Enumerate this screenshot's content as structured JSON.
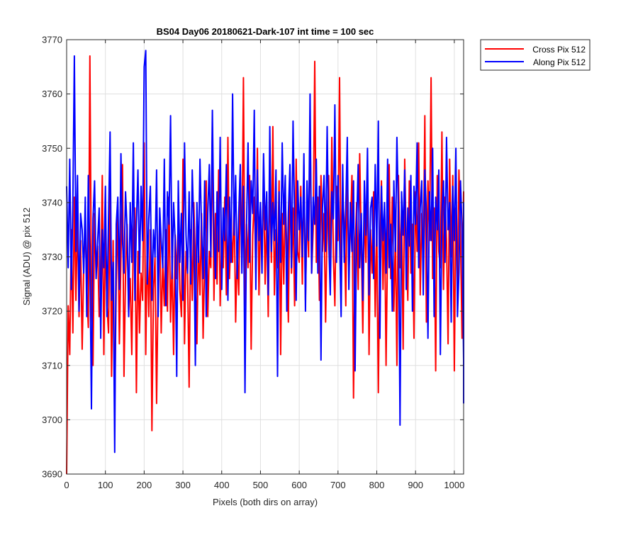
{
  "chart_data": {
    "type": "line",
    "title": "BS04 Day06 20180621-Dark-107 int time = 100 sec",
    "xlabel": "Pixels (both dirs on array)",
    "ylabel": "Signal (ADU) @ pix 512",
    "xlim": [
      0,
      1024
    ],
    "ylim": [
      3690,
      3770
    ],
    "xticks": [
      0,
      100,
      200,
      300,
      400,
      500,
      600,
      700,
      800,
      900,
      1000
    ],
    "yticks": [
      3690,
      3700,
      3710,
      3720,
      3730,
      3740,
      3750,
      3760,
      3770
    ],
    "grid": true,
    "legend_position": "outside top-right",
    "x_step": 4,
    "series": [
      {
        "name": "Cross Pix 512",
        "color": "#ff0000",
        "values": [
          3690,
          3721,
          3712,
          3735,
          3716,
          3741,
          3722,
          3738,
          3719,
          3733,
          3713,
          3728,
          3736,
          3724,
          3717,
          3767,
          3722,
          3710,
          3738,
          3727,
          3732,
          3719,
          3724,
          3745,
          3712,
          3735,
          3721,
          3716,
          3743,
          3708,
          3733,
          3702,
          3725,
          3738,
          3714,
          3730,
          3747,
          3708,
          3727,
          3736,
          3720,
          3726,
          3712,
          3734,
          3739,
          3705,
          3731,
          3716,
          3727,
          3722,
          3751,
          3712,
          3733,
          3719,
          3735,
          3698,
          3724,
          3730,
          3703,
          3725,
          3737,
          3716,
          3729,
          3721,
          3735,
          3720,
          3741,
          3718,
          3729,
          3712,
          3734,
          3726,
          3737,
          3724,
          3719,
          3748,
          3714,
          3731,
          3727,
          3706,
          3735,
          3722,
          3740,
          3729,
          3714,
          3733,
          3723,
          3738,
          3715,
          3729,
          3744,
          3719,
          3731,
          3728,
          3754,
          3722,
          3738,
          3725,
          3746,
          3721,
          3733,
          3728,
          3741,
          3723,
          3752,
          3726,
          3735,
          3729,
          3740,
          3718,
          3731,
          3723,
          3744,
          3729,
          3763,
          3721,
          3736,
          3728,
          3745,
          3713,
          3734,
          3741,
          3727,
          3750,
          3723,
          3737,
          3731,
          3744,
          3725,
          3738,
          3719,
          3746,
          3729,
          3754,
          3723,
          3735,
          3728,
          3744,
          3712,
          3738,
          3725,
          3742,
          3731,
          3718,
          3746,
          3727,
          3739,
          3721,
          3748,
          3731,
          3729,
          3743,
          3725,
          3747,
          3722,
          3739,
          3730,
          3756,
          3727,
          3735,
          3766,
          3729,
          3741,
          3722,
          3745,
          3731,
          3738,
          3718,
          3736,
          3745,
          3728,
          3752,
          3730,
          3721,
          3743,
          3733,
          3763,
          3726,
          3742,
          3736,
          3721,
          3747,
          3727,
          3735,
          3745,
          3704,
          3731,
          3740,
          3724,
          3749,
          3733,
          3716,
          3739,
          3729,
          3746,
          3712,
          3735,
          3727,
          3742,
          3719,
          3736,
          3705,
          3731,
          3744,
          3724,
          3739,
          3710,
          3733,
          3747,
          3726,
          3741,
          3720,
          3734,
          3710,
          3745,
          3728,
          3739,
          3713,
          3748,
          3732,
          3722,
          3744,
          3727,
          3736,
          3715,
          3742,
          3731,
          3751,
          3723,
          3738,
          3729,
          3756,
          3718,
          3744,
          3733,
          3763,
          3726,
          3739,
          3709,
          3745,
          3731,
          3728,
          3753,
          3724,
          3741,
          3733,
          3714,
          3748,
          3730,
          3745,
          3709,
          3739,
          3725,
          3746,
          3734,
          3715,
          3742,
          3728,
          3711,
          3735,
          3722,
          3736,
          3719,
          3741,
          3729
        ]
      },
      {
        "name": "Along Pix 512",
        "color": "#0000ff",
        "values": [
          3743,
          3728,
          3748,
          3724,
          3740,
          3767,
          3731,
          3745,
          3720,
          3738,
          3735,
          3727,
          3741,
          3719,
          3745,
          3730,
          3702,
          3737,
          3744,
          3726,
          3733,
          3739,
          3715,
          3735,
          3728,
          3743,
          3719,
          3737,
          3753,
          3722,
          3729,
          3694,
          3736,
          3741,
          3724,
          3749,
          3733,
          3727,
          3742,
          3735,
          3719,
          3740,
          3729,
          3751,
          3722,
          3736,
          3746,
          3727,
          3743,
          3733,
          3765,
          3768,
          3725,
          3737,
          3743,
          3722,
          3735,
          3730,
          3746,
          3719,
          3739,
          3733,
          3728,
          3748,
          3721,
          3742,
          3736,
          3756,
          3726,
          3740,
          3733,
          3708,
          3744,
          3729,
          3738,
          3722,
          3751,
          3734,
          3727,
          3742,
          3725,
          3746,
          3735,
          3710,
          3740,
          3729,
          3748,
          3735,
          3726,
          3744,
          3719,
          3738,
          3747,
          3730,
          3757,
          3734,
          3726,
          3742,
          3731,
          3752,
          3724,
          3739,
          3733,
          3747,
          3722,
          3741,
          3729,
          3760,
          3734,
          3745,
          3726,
          3738,
          3747,
          3727,
          3743,
          3705,
          3736,
          3751,
          3729,
          3744,
          3738,
          3757,
          3724,
          3746,
          3733,
          3740,
          3727,
          3749,
          3735,
          3742,
          3723,
          3754,
          3731,
          3740,
          3733,
          3746,
          3708,
          3742,
          3729,
          3751,
          3736,
          3745,
          3720,
          3738,
          3747,
          3728,
          3755,
          3737,
          3722,
          3744,
          3735,
          3741,
          3730,
          3749,
          3720,
          3744,
          3733,
          3760,
          3727,
          3741,
          3736,
          3748,
          3727,
          3743,
          3711,
          3739,
          3745,
          3731,
          3754,
          3733,
          3723,
          3742,
          3737,
          3758,
          3729,
          3745,
          3734,
          3719,
          3747,
          3729,
          3739,
          3752,
          3724,
          3740,
          3731,
          3744,
          3709,
          3736,
          3747,
          3728,
          3738,
          3722,
          3744,
          3734,
          3750,
          3723,
          3739,
          3741,
          3726,
          3747,
          3732,
          3755,
          3715,
          3743,
          3733,
          3740,
          3727,
          3748,
          3728,
          3736,
          3720,
          3744,
          3731,
          3752,
          3738,
          3699,
          3742,
          3734,
          3746,
          3724,
          3739,
          3732,
          3745,
          3720,
          3743,
          3736,
          3751,
          3728,
          3739,
          3744,
          3723,
          3746,
          3738,
          3715,
          3742,
          3733,
          3750,
          3719,
          3741,
          3735,
          3746,
          3712,
          3738,
          3744,
          3729,
          3752,
          3735,
          3740,
          3718,
          3743,
          3733,
          3750,
          3719,
          3727,
          3744,
          3735,
          3711,
          3740,
          3730,
          3725,
          3703
        ]
      }
    ]
  }
}
